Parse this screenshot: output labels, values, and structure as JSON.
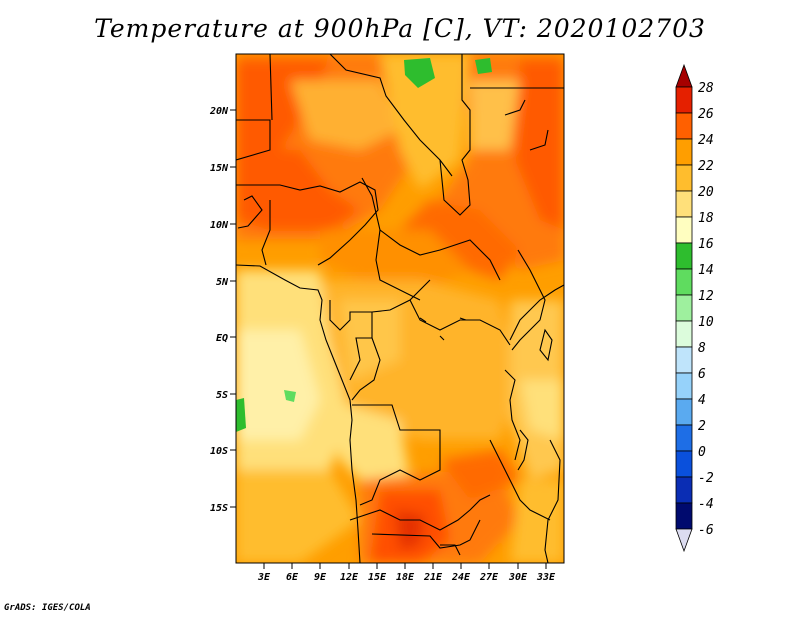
{
  "title": "Temperature at 900hPa [C], VT: 2020102703",
  "credit": "GrADS: IGES/COLA",
  "y_axis_labels": [
    "20N",
    "15N",
    "10N",
    "5N",
    "EQ",
    "5S",
    "10S",
    "15S"
  ],
  "x_axis_labels": [
    "3E",
    "6E",
    "9E",
    "12E",
    "15E",
    "18E",
    "21E",
    "24E",
    "27E",
    "30E",
    "33E"
  ],
  "colorbar": {
    "levels": [
      "28",
      "26",
      "24",
      "22",
      "20",
      "18",
      "16",
      "14",
      "12",
      "10",
      "8",
      "6",
      "4",
      "2",
      "0",
      "-2",
      "-4",
      "-6"
    ],
    "colors": [
      "#a50000",
      "#e52000",
      "#ff6000",
      "#ff9e00",
      "#ffbd2d",
      "#ffe07a",
      "#fffec0",
      "#2ebd2e",
      "#5fdc5f",
      "#9ef09e",
      "#dcfcdc",
      "#bfe4fb",
      "#96d2fa",
      "#5aaaf0",
      "#1e6ee6",
      "#0a50dc",
      "#0a2db4",
      "#000a6e",
      "#dcdcf0"
    ]
  },
  "map": {
    "lon_range": [
      0,
      35
    ],
    "lat_range": [
      -20,
      24.5
    ],
    "background": "#ffa030"
  }
}
